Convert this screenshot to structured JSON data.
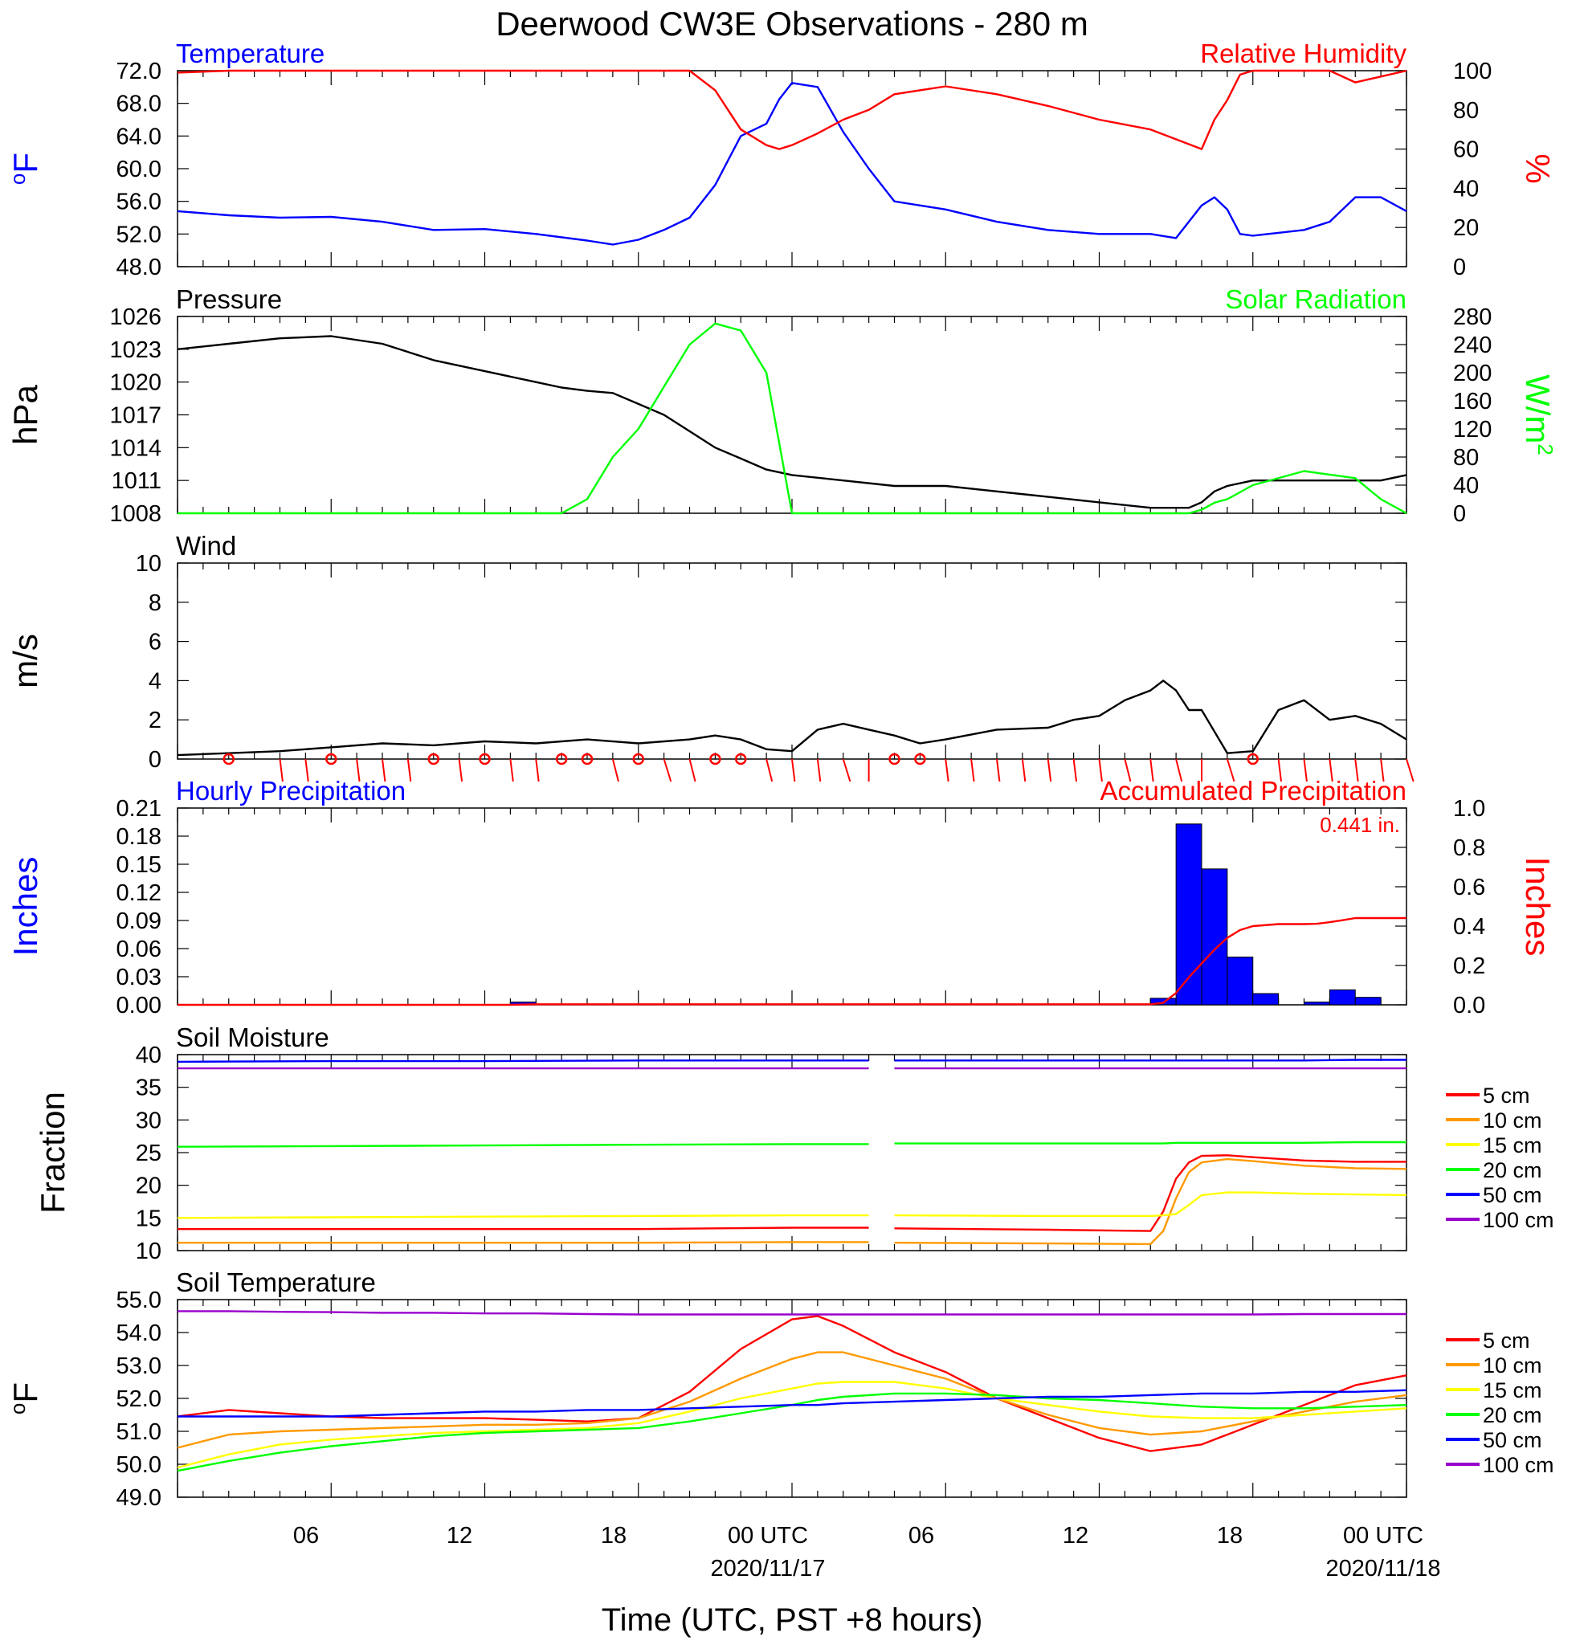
{
  "figure_title": "Deerwood CW3E Observations - 280 m",
  "time_axis": {
    "label": "Time (UTC, PST +8 hours)",
    "ticks": [
      "06",
      "12",
      "18",
      "00 UTC",
      "06",
      "12",
      "18",
      "00 UTC"
    ],
    "dates": [
      "2020/11/17",
      "2020/11/18"
    ]
  },
  "colors": {
    "temperature": "#0000ff",
    "humidity": "#ff0000",
    "pressure": "#000000",
    "solar": "#00ff00",
    "wind": "#000000",
    "wind_barb": "#ff0000",
    "precip_bar": "#0000ff",
    "precip_accum": "#ff0000"
  },
  "chart_data": [
    {
      "type": "line",
      "panel": "temperature-humidity",
      "left_title": "Temperature",
      "right_title": "Relative Humidity",
      "ylabel_left": "oF",
      "ylabel_right": "%",
      "ylim_left": [
        48,
        72
      ],
      "ylim_right": [
        0,
        100
      ],
      "yticks_left": [
        "72.0",
        "68.0",
        "64.0",
        "60.0",
        "56.0",
        "52.0",
        "48.0"
      ],
      "yticks_right": [
        "100",
        "80",
        "60",
        "40",
        "20",
        "0"
      ],
      "x_hours": [
        0,
        2,
        4,
        6,
        8,
        10,
        12,
        14,
        16,
        17,
        18,
        19,
        20,
        21,
        21.5,
        22,
        23,
        23.5,
        24,
        25,
        26,
        27,
        28,
        30,
        32,
        34,
        36,
        38,
        39,
        40,
        40.5,
        41,
        41.5,
        42,
        44,
        45,
        46,
        47,
        48
      ],
      "series": [
        {
          "name": "Temperature",
          "axis": "left",
          "color": "#0000ff",
          "values": [
            54.8,
            54.3,
            54.0,
            54.1,
            53.5,
            52.5,
            52.6,
            52.0,
            51.2,
            50.7,
            51.3,
            52.5,
            54.0,
            58.0,
            61.0,
            64.0,
            65.5,
            68.5,
            70.5,
            70.0,
            64.5,
            60.0,
            56.0,
            55.0,
            53.5,
            52.5,
            52.0,
            52.0,
            51.5,
            55.5,
            56.5,
            55.0,
            52.0,
            51.8,
            52.5,
            53.5,
            56.5,
            56.5,
            54.8
          ]
        },
        {
          "name": "Relative Humidity",
          "axis": "right",
          "color": "#ff0000",
          "values": [
            99,
            100,
            100,
            100,
            100,
            100,
            100,
            100,
            100,
            100,
            100,
            100,
            100,
            90,
            80,
            70,
            62,
            60,
            62,
            68,
            75,
            80,
            88,
            92,
            88,
            82,
            75,
            70,
            65,
            60,
            75,
            85,
            98,
            100,
            100,
            100,
            94,
            97,
            100
          ]
        }
      ]
    },
    {
      "type": "line",
      "panel": "pressure-solar",
      "left_title": "Pressure",
      "right_title": "Solar Radiation",
      "ylabel_left": "hPa",
      "ylabel_right": "W/m2",
      "ylim_left": [
        1008,
        1026
      ],
      "ylim_right": [
        0,
        280
      ],
      "yticks_left": [
        "1026",
        "1023",
        "1020",
        "1017",
        "1014",
        "1011",
        "1008"
      ],
      "yticks_right": [
        "280",
        "240",
        "200",
        "160",
        "120",
        "80",
        "40",
        "0"
      ],
      "x_hours": [
        0,
        2,
        4,
        6,
        8,
        10,
        12,
        14,
        15,
        16,
        17,
        18,
        19,
        20,
        21,
        22,
        23,
        24,
        26,
        28,
        30,
        32,
        34,
        36,
        38,
        39,
        39.5,
        40,
        40.5,
        41,
        42,
        44,
        46,
        47,
        48
      ],
      "series": [
        {
          "name": "Pressure",
          "axis": "left",
          "color": "#000000",
          "values": [
            1023.0,
            1023.5,
            1024.0,
            1024.2,
            1023.5,
            1022.0,
            1021.0,
            1020.0,
            1019.5,
            1019.2,
            1019.0,
            1018.0,
            1017.0,
            1015.5,
            1014.0,
            1013.0,
            1012.0,
            1011.5,
            1011.0,
            1010.5,
            1010.5,
            1010.0,
            1009.5,
            1009.0,
            1008.5,
            1008.5,
            1008.5,
            1009.0,
            1010.0,
            1010.5,
            1011.0,
            1011.0,
            1011.0,
            1011.0,
            1011.5
          ]
        },
        {
          "name": "Solar Radiation",
          "axis": "right",
          "color": "#00ff00",
          "values": [
            0,
            0,
            0,
            0,
            0,
            0,
            0,
            0,
            0,
            20,
            80,
            120,
            180,
            240,
            270,
            260,
            200,
            0,
            0,
            0,
            0,
            0,
            0,
            0,
            0,
            0,
            0,
            5,
            15,
            20,
            40,
            60,
            50,
            20,
            0
          ]
        }
      ]
    },
    {
      "type": "line",
      "panel": "wind",
      "left_title": "Wind",
      "ylabel_left": "m/s",
      "ylim_left": [
        0,
        10
      ],
      "yticks_left": [
        "10",
        "8",
        "6",
        "4",
        "2",
        "0"
      ],
      "x_hours": [
        0,
        2,
        4,
        6,
        8,
        10,
        12,
        14,
        16,
        18,
        20,
        21,
        22,
        23,
        24,
        25,
        26,
        27,
        28,
        29,
        30,
        32,
        34,
        35,
        36,
        37,
        38,
        38.5,
        39,
        39.5,
        40,
        41,
        42,
        43,
        44,
        45,
        46,
        47,
        48
      ],
      "series": [
        {
          "name": "Wind",
          "color": "#000000",
          "values": [
            0.2,
            0.3,
            0.4,
            0.6,
            0.8,
            0.7,
            0.9,
            0.8,
            1.0,
            0.8,
            1.0,
            1.2,
            1.0,
            0.5,
            0.4,
            1.5,
            1.8,
            1.5,
            1.2,
            0.8,
            1.0,
            1.5,
            1.6,
            2.0,
            2.2,
            3.0,
            3.5,
            4.0,
            3.5,
            2.5,
            2.5,
            0.3,
            0.4,
            2.5,
            3.0,
            2.0,
            2.2,
            1.8,
            1.0
          ]
        }
      ],
      "barbs": {
        "hour": [
          2,
          4,
          5,
          6,
          7,
          8,
          9,
          10,
          11,
          12,
          13,
          14,
          15,
          16,
          17,
          18,
          19,
          20,
          21,
          22,
          23,
          24,
          25,
          26,
          27,
          28,
          29,
          30,
          31,
          32,
          33,
          34,
          35,
          36,
          37,
          38,
          39,
          40,
          41,
          42,
          43,
          44,
          45,
          46,
          47,
          48
        ],
        "calm": [
          true,
          false,
          false,
          true,
          false,
          false,
          false,
          true,
          false,
          true,
          false,
          false,
          true,
          true,
          false,
          true,
          false,
          false,
          true,
          true,
          false,
          false,
          false,
          false,
          false,
          true,
          true,
          false,
          false,
          false,
          false,
          false,
          false,
          false,
          false,
          false,
          false,
          false,
          false,
          true,
          false,
          false,
          false,
          false,
          false,
          false
        ],
        "dir_deg": [
          0,
          340,
          340,
          0,
          340,
          340,
          340,
          0,
          340,
          0,
          340,
          340,
          0,
          0,
          225,
          0,
          300,
          315,
          0,
          0,
          225,
          340,
          340,
          300,
          0,
          0,
          0,
          340,
          340,
          340,
          340,
          340,
          340,
          340,
          315,
          340,
          315,
          0,
          240,
          0,
          340,
          340,
          340,
          340,
          340,
          300
        ]
      }
    },
    {
      "type": "bar",
      "panel": "precipitation",
      "left_title": "Hourly Precipitation",
      "right_title": "Accumulated Precipitation",
      "annotation": "0.441 in.",
      "ylabel_left": "Inches",
      "ylabel_right": "Inches",
      "ylim_left": [
        0,
        0.21
      ],
      "ylim_right": [
        0,
        1.0
      ],
      "yticks_left": [
        "0.21",
        "0.18",
        "0.15",
        "0.12",
        "0.09",
        "0.06",
        "0.03",
        "0.00"
      ],
      "yticks_right": [
        "1.0",
        "0.8",
        "0.6",
        "0.4",
        "0.2",
        "0.0"
      ],
      "bars": {
        "name": "Hourly Precipitation",
        "start_hour": [
          13,
          38,
          39,
          40,
          41,
          42,
          44,
          45,
          46
        ],
        "values": [
          0.003,
          0.007,
          0.193,
          0.145,
          0.051,
          0.012,
          0.003,
          0.016,
          0.008
        ]
      },
      "accumulated": {
        "name": "Accumulated Precipitation",
        "x_hours": [
          0,
          13,
          14,
          38,
          38.5,
          39,
          39.5,
          40,
          40.5,
          41,
          41.5,
          42,
          43,
          44,
          44.5,
          45,
          45.5,
          46,
          47,
          48
        ],
        "values": [
          0,
          0,
          0.003,
          0.003,
          0.01,
          0.06,
          0.14,
          0.21,
          0.28,
          0.34,
          0.38,
          0.4,
          0.41,
          0.41,
          0.412,
          0.42,
          0.43,
          0.441,
          0.441,
          0.441
        ]
      }
    },
    {
      "type": "line",
      "panel": "soil-moisture",
      "left_title": "Soil Moisture",
      "ylabel_left": "Fraction",
      "ylim_left": [
        10,
        40
      ],
      "yticks_left": [
        "40",
        "35",
        "30",
        "25",
        "20",
        "15",
        "10"
      ],
      "gap_hours": [
        27,
        28
      ],
      "x_hours": [
        0,
        6,
        12,
        18,
        24,
        27,
        28,
        34,
        38,
        38.5,
        39,
        39.5,
        40,
        41,
        42,
        44,
        46,
        48
      ],
      "series": [
        {
          "name": "5 cm",
          "color": "#ff0000",
          "values": [
            13.3,
            13.3,
            13.3,
            13.3,
            13.5,
            13.5,
            13.4,
            13.2,
            13.0,
            16.0,
            21.0,
            23.5,
            24.5,
            24.6,
            24.3,
            23.8,
            23.6,
            23.6
          ]
        },
        {
          "name": "10 cm",
          "color": "#ff9900",
          "values": [
            11.2,
            11.2,
            11.2,
            11.2,
            11.3,
            11.3,
            11.2,
            11.1,
            11.0,
            13.0,
            18.0,
            22.0,
            23.5,
            24.0,
            23.7,
            23.0,
            22.6,
            22.5
          ]
        },
        {
          "name": "15 cm",
          "color": "#ffff00",
          "values": [
            15.0,
            15.1,
            15.2,
            15.3,
            15.4,
            15.4,
            15.4,
            15.3,
            15.3,
            15.4,
            15.6,
            17.0,
            18.5,
            18.9,
            18.9,
            18.7,
            18.6,
            18.5
          ]
        },
        {
          "name": "20 cm",
          "color": "#00ff00",
          "values": [
            25.9,
            26.0,
            26.1,
            26.2,
            26.3,
            26.3,
            26.4,
            26.4,
            26.4,
            26.4,
            26.5,
            26.5,
            26.5,
            26.5,
            26.5,
            26.5,
            26.6,
            26.6
          ]
        },
        {
          "name": "50 cm",
          "color": "#0000ff",
          "values": [
            38.9,
            39.0,
            39.0,
            39.1,
            39.1,
            39.1,
            39.1,
            39.1,
            39.1,
            39.1,
            39.1,
            39.1,
            39.1,
            39.1,
            39.1,
            39.1,
            39.2,
            39.2
          ]
        },
        {
          "name": "100 cm",
          "color": "#9900cc",
          "values": [
            37.9,
            37.9,
            37.9,
            37.9,
            37.9,
            37.9,
            37.9,
            37.9,
            37.9,
            37.9,
            37.9,
            37.9,
            37.9,
            37.9,
            37.9,
            37.9,
            37.9,
            37.9
          ]
        }
      ]
    },
    {
      "type": "line",
      "panel": "soil-temperature",
      "left_title": "Soil Temperature",
      "ylabel_left": "oF",
      "ylim_left": [
        49,
        55
      ],
      "yticks_left": [
        "55.0",
        "54.0",
        "53.0",
        "52.0",
        "51.0",
        "50.0",
        "49.0"
      ],
      "x_hours": [
        0,
        2,
        4,
        6,
        8,
        10,
        12,
        14,
        16,
        18,
        20,
        22,
        24,
        25,
        26,
        28,
        30,
        32,
        34,
        36,
        38,
        40,
        42,
        44,
        46,
        48
      ],
      "series": [
        {
          "name": "5 cm",
          "color": "#ff0000",
          "values": [
            51.45,
            51.65,
            51.55,
            51.45,
            51.4,
            51.4,
            51.4,
            51.35,
            51.3,
            51.4,
            52.2,
            53.5,
            54.4,
            54.5,
            54.2,
            53.4,
            52.8,
            52.0,
            51.4,
            50.8,
            50.4,
            50.6,
            51.2,
            51.8,
            52.4,
            52.7
          ]
        },
        {
          "name": "10 cm",
          "color": "#ff9900",
          "values": [
            50.5,
            50.9,
            51.0,
            51.05,
            51.1,
            51.15,
            51.2,
            51.2,
            51.25,
            51.4,
            51.9,
            52.6,
            53.2,
            53.4,
            53.4,
            53.0,
            52.6,
            52.0,
            51.5,
            51.1,
            50.9,
            51.0,
            51.3,
            51.6,
            51.9,
            52.1
          ]
        },
        {
          "name": "15 cm",
          "color": "#ffff00",
          "values": [
            49.9,
            50.3,
            50.6,
            50.75,
            50.85,
            50.95,
            51.0,
            51.05,
            51.1,
            51.25,
            51.6,
            52.0,
            52.3,
            52.45,
            52.5,
            52.5,
            52.3,
            52.0,
            51.8,
            51.6,
            51.45,
            51.4,
            51.4,
            51.5,
            51.6,
            51.7
          ]
        },
        {
          "name": "20 cm",
          "color": "#00ff00",
          "values": [
            49.8,
            50.1,
            50.35,
            50.55,
            50.7,
            50.85,
            50.95,
            51.0,
            51.05,
            51.1,
            51.3,
            51.55,
            51.8,
            51.95,
            52.05,
            52.15,
            52.15,
            52.1,
            52.0,
            51.95,
            51.85,
            51.75,
            51.7,
            51.7,
            51.75,
            51.8
          ]
        },
        {
          "name": "50 cm",
          "color": "#0000ff",
          "values": [
            51.45,
            51.45,
            51.45,
            51.45,
            51.5,
            51.55,
            51.6,
            51.6,
            51.65,
            51.65,
            51.7,
            51.75,
            51.8,
            51.8,
            51.85,
            51.9,
            51.95,
            52.0,
            52.05,
            52.05,
            52.1,
            52.15,
            52.15,
            52.2,
            52.2,
            52.25
          ]
        },
        {
          "name": "100 cm",
          "color": "#9900cc",
          "values": [
            54.65,
            54.65,
            54.63,
            54.62,
            54.6,
            54.6,
            54.58,
            54.58,
            54.56,
            54.55,
            54.55,
            54.55,
            54.55,
            54.55,
            54.55,
            54.55,
            54.55,
            54.55,
            54.55,
            54.55,
            54.55,
            54.55,
            54.55,
            54.56,
            54.56,
            54.56
          ]
        }
      ]
    }
  ]
}
